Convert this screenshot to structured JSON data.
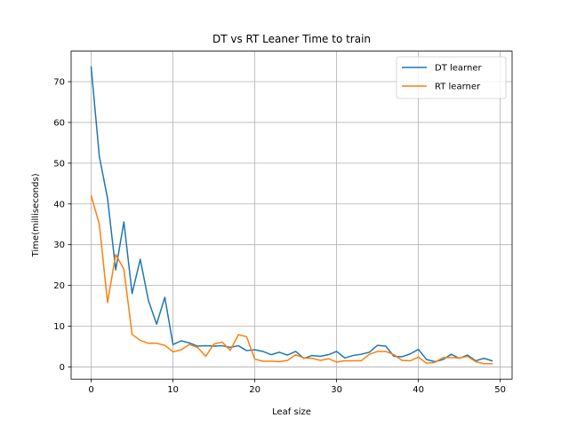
{
  "chart_data": {
    "type": "line",
    "title": "DT vs RT Leaner Time to train",
    "xlabel": "Leaf size",
    "ylabel": "Time(milliseconds)",
    "xlim": [
      -2.45,
      51.45
    ],
    "ylim": [
      -3.0,
      77.5
    ],
    "xticks": [
      0,
      10,
      20,
      30,
      40,
      50
    ],
    "yticks": [
      0,
      10,
      20,
      30,
      40,
      50,
      60,
      70
    ],
    "grid": true,
    "legend_position": "top-right",
    "series": [
      {
        "name": "DT learner",
        "color": "#1f77b4",
        "x": [
          0,
          1,
          2,
          3,
          4,
          5,
          6,
          7,
          8,
          9,
          10,
          11,
          12,
          13,
          14,
          15,
          16,
          17,
          18,
          19,
          20,
          21,
          22,
          23,
          24,
          25,
          26,
          27,
          28,
          29,
          30,
          31,
          32,
          33,
          34,
          35,
          36,
          37,
          38,
          39,
          40,
          41,
          42,
          43,
          44,
          45,
          46,
          47,
          48,
          49
        ],
        "values": [
          73.6,
          51.6,
          41.4,
          23.8,
          35.6,
          18.0,
          26.4,
          16.3,
          10.5,
          17.1,
          5.5,
          6.4,
          5.9,
          5.1,
          5.2,
          5.1,
          5.2,
          4.8,
          5.2,
          4.0,
          4.2,
          3.8,
          3.0,
          3.6,
          2.9,
          3.8,
          2.1,
          2.8,
          2.6,
          3.0,
          3.8,
          2.2,
          2.8,
          3.1,
          3.6,
          5.3,
          5.1,
          2.6,
          2.5,
          3.2,
          4.3,
          1.8,
          1.3,
          1.8,
          3.1,
          2.1,
          2.9,
          1.5,
          2.1,
          1.5
        ]
      },
      {
        "name": "RT learner",
        "color": "#ff7f0e",
        "x": [
          0,
          1,
          2,
          3,
          4,
          5,
          6,
          7,
          8,
          9,
          10,
          11,
          12,
          13,
          14,
          15,
          16,
          17,
          18,
          19,
          20,
          21,
          22,
          23,
          24,
          25,
          26,
          27,
          28,
          29,
          30,
          31,
          32,
          33,
          34,
          35,
          36,
          37,
          38,
          39,
          40,
          41,
          42,
          43,
          44,
          45,
          46,
          47,
          48,
          49
        ],
        "values": [
          42.0,
          35.0,
          15.8,
          27.6,
          24.0,
          8.0,
          6.5,
          5.8,
          5.8,
          5.3,
          3.7,
          4.2,
          5.5,
          4.8,
          2.6,
          5.6,
          6.1,
          4.1,
          7.9,
          7.4,
          1.9,
          1.4,
          1.4,
          1.3,
          1.6,
          3.0,
          2.2,
          2.1,
          1.6,
          2.0,
          1.2,
          1.5,
          1.5,
          1.5,
          3.1,
          3.8,
          3.8,
          3.0,
          1.6,
          1.5,
          2.4,
          0.9,
          1.1,
          2.3,
          2.3,
          2.2,
          2.6,
          1.3,
          0.8,
          0.8
        ]
      }
    ]
  }
}
